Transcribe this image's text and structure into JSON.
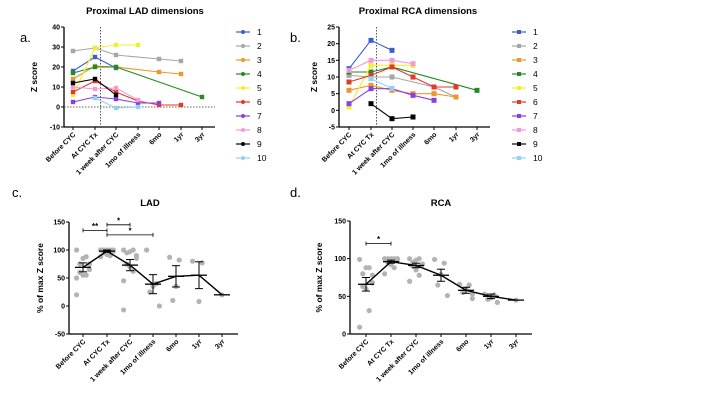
{
  "figure": {
    "panels": [
      "a.",
      "b.",
      "c.",
      "d."
    ]
  },
  "chart_data": [
    {
      "id": "a",
      "type": "line",
      "title": "Proximal LAD dimensions",
      "xlabel": "",
      "ylabel": "Z score",
      "ylim": [
        -10,
        40
      ],
      "yticks": [
        -10,
        0,
        10,
        20,
        30,
        40
      ],
      "categories": [
        "Before CYC",
        "At CYC Tx",
        "1 week after CYC",
        "1mo of illness",
        "6mo",
        "1yr",
        "3yr"
      ],
      "reference_lines": {
        "horizontal_y": 0,
        "vertical_between": [
          "At CYC Tx",
          "1 week after CYC"
        ],
        "vertical_offset": 0.25
      },
      "marker": "circle",
      "legend_position": "right",
      "series": [
        {
          "name": "1",
          "color": "#3a5fcd",
          "values": [
            18,
            25,
            19.5,
            null,
            null,
            null,
            null
          ]
        },
        {
          "name": "2",
          "color": "#a6a6a6",
          "values": [
            28,
            29.5,
            26,
            null,
            24,
            23,
            null
          ]
        },
        {
          "name": "3",
          "color": "#f0962a",
          "values": [
            14,
            20.5,
            20,
            null,
            17.5,
            16.5,
            null
          ]
        },
        {
          "name": "4",
          "color": "#228b22",
          "values": [
            17,
            20,
            20,
            null,
            null,
            null,
            5
          ]
        },
        {
          "name": "5",
          "color": "#f5ee30",
          "values": [
            6,
            29.5,
            31,
            31,
            null,
            null,
            null
          ]
        },
        {
          "name": "6",
          "color": "#e03a2a",
          "values": [
            7.5,
            13,
            7.5,
            3,
            1,
            1,
            null
          ]
        },
        {
          "name": "7",
          "color": "#8a3fe0",
          "values": [
            2.5,
            5,
            4,
            2,
            2,
            null,
            null
          ]
        },
        {
          "name": "8",
          "color": "#f29ad8",
          "values": [
            10,
            9,
            9.5,
            3.5,
            null,
            null,
            null
          ]
        },
        {
          "name": "9",
          "color": "#000000",
          "values": [
            12,
            14,
            6,
            null,
            null,
            null,
            null
          ]
        },
        {
          "name": "10",
          "color": "#8fd3f0",
          "values": [
            null,
            4.5,
            -0.5,
            0,
            null,
            null,
            null
          ]
        }
      ]
    },
    {
      "id": "b",
      "type": "line",
      "title": "Proximal RCA dimensions",
      "xlabel": "",
      "ylabel": "Z score",
      "ylim": [
        -5,
        25
      ],
      "yticks": [
        -5,
        0,
        5,
        10,
        15,
        20,
        25
      ],
      "categories": [
        "Before CYC",
        "At CYC Tx",
        "1 week after CYC",
        "1mo of illness",
        "6mo",
        "1yr",
        "3yr"
      ],
      "reference_lines": {
        "vertical_between": [
          "At CYC Tx",
          "1 week after CYC"
        ],
        "vertical_offset": 0.25
      },
      "marker": "square",
      "legend_position": "right",
      "series": [
        {
          "name": "1",
          "color": "#3a5fcd",
          "values": [
            12.5,
            21,
            18,
            null,
            null,
            null,
            null
          ]
        },
        {
          "name": "2",
          "color": "#a6a6a6",
          "values": [
            10.5,
            10,
            10,
            null,
            7,
            4,
            null
          ]
        },
        {
          "name": "3",
          "color": "#f0962a",
          "values": [
            6,
            7.5,
            6,
            5,
            5,
            4,
            null
          ]
        },
        {
          "name": "4",
          "color": "#228b22",
          "values": [
            11.5,
            11.5,
            13,
            null,
            null,
            null,
            6
          ]
        },
        {
          "name": "5",
          "color": "#f5ee30",
          "values": [
            1,
            13.5,
            13.5,
            13.5,
            null,
            null,
            null
          ]
        },
        {
          "name": "6",
          "color": "#e03a2a",
          "values": [
            8.5,
            10.5,
            13,
            10,
            7,
            7,
            null
          ]
        },
        {
          "name": "7",
          "color": "#8a3fe0",
          "values": [
            2,
            6.5,
            6.5,
            4.5,
            3,
            null,
            null
          ]
        },
        {
          "name": "8",
          "color": "#f29ad8",
          "values": [
            12,
            15,
            15,
            14,
            null,
            null,
            null
          ]
        },
        {
          "name": "9",
          "color": "#000000",
          "values": [
            null,
            2,
            -2.5,
            -2,
            null,
            null,
            null
          ]
        },
        {
          "name": "10",
          "color": "#8fd3f0",
          "values": [
            null,
            9.5,
            6.5,
            null,
            null,
            null,
            null
          ]
        }
      ]
    },
    {
      "id": "c",
      "type": "scatter",
      "title": "LAD",
      "xlabel": "",
      "ylabel": "% of max Z score",
      "ylim": [
        -50,
        150
      ],
      "yticks": [
        -50,
        0,
        50,
        100,
        150
      ],
      "categories": [
        "Before CYC",
        "At CYC Tx",
        "1 week after CYC",
        "1mo of illness",
        "6mo",
        "1yr",
        "3yr"
      ],
      "points": [
        [
          100,
          88,
          85,
          75,
          75,
          65,
          60,
          55,
          55,
          50,
          20
        ],
        [
          100,
          100,
          100,
          100,
          100,
          98,
          95,
          92,
          90,
          88
        ],
        [
          100,
          100,
          97,
          95,
          90,
          85,
          75,
          70,
          62,
          45,
          -7
        ],
        [
          100,
          40,
          35,
          25,
          0
        ],
        [
          87,
          82,
          35,
          10
        ],
        [
          80,
          77,
          8
        ],
        [
          20
        ]
      ],
      "mean": [
        69,
        98,
        73,
        39,
        53,
        55,
        20
      ],
      "sem": [
        8,
        2,
        10,
        17,
        19,
        24,
        0
      ],
      "significance": [
        {
          "from": "Before CYC",
          "to": "At CYC Tx",
          "label": "**",
          "level": 135
        },
        {
          "from": "At CYC Tx",
          "to": "1 week after CYC",
          "label": "*",
          "level": 145
        },
        {
          "from": "At CYC Tx",
          "to": "1mo of illness",
          "label": "*",
          "level": 127
        }
      ],
      "point_color": "#b3b3b3",
      "line_color": "#000000"
    },
    {
      "id": "d",
      "type": "scatter",
      "title": "RCA",
      "xlabel": "",
      "ylabel": "% of max Z score",
      "ylim": [
        0,
        150
      ],
      "yticks": [
        0,
        50,
        100,
        150
      ],
      "categories": [
        "Before CYC",
        "At CYC Tx",
        "1 week after CYC",
        "1mo of illness",
        "6mo",
        "1yr",
        "3yr"
      ],
      "points": [
        [
          99,
          88,
          88,
          80,
          78,
          68,
          63,
          60,
          31,
          9
        ],
        [
          100,
          100,
          100,
          100,
          100,
          98,
          95,
          92,
          88,
          80
        ],
        [
          100,
          100,
          98,
          95,
          93,
          92,
          90,
          85,
          78,
          70
        ],
        [
          99,
          94,
          79,
          65,
          51
        ],
        [
          66,
          65,
          60,
          55,
          53,
          47
        ],
        [
          53,
          52,
          48,
          46,
          42
        ],
        [
          45
        ]
      ],
      "mean": [
        66,
        96,
        91,
        78,
        58,
        50,
        45
      ],
      "sem": [
        9,
        2,
        3,
        8,
        4,
        3,
        0
      ],
      "significance": [
        {
          "from": "Before CYC",
          "to": "At CYC Tx",
          "label": "*",
          "level": 120
        }
      ],
      "point_color": "#b3b3b3",
      "line_color": "#000000"
    }
  ]
}
